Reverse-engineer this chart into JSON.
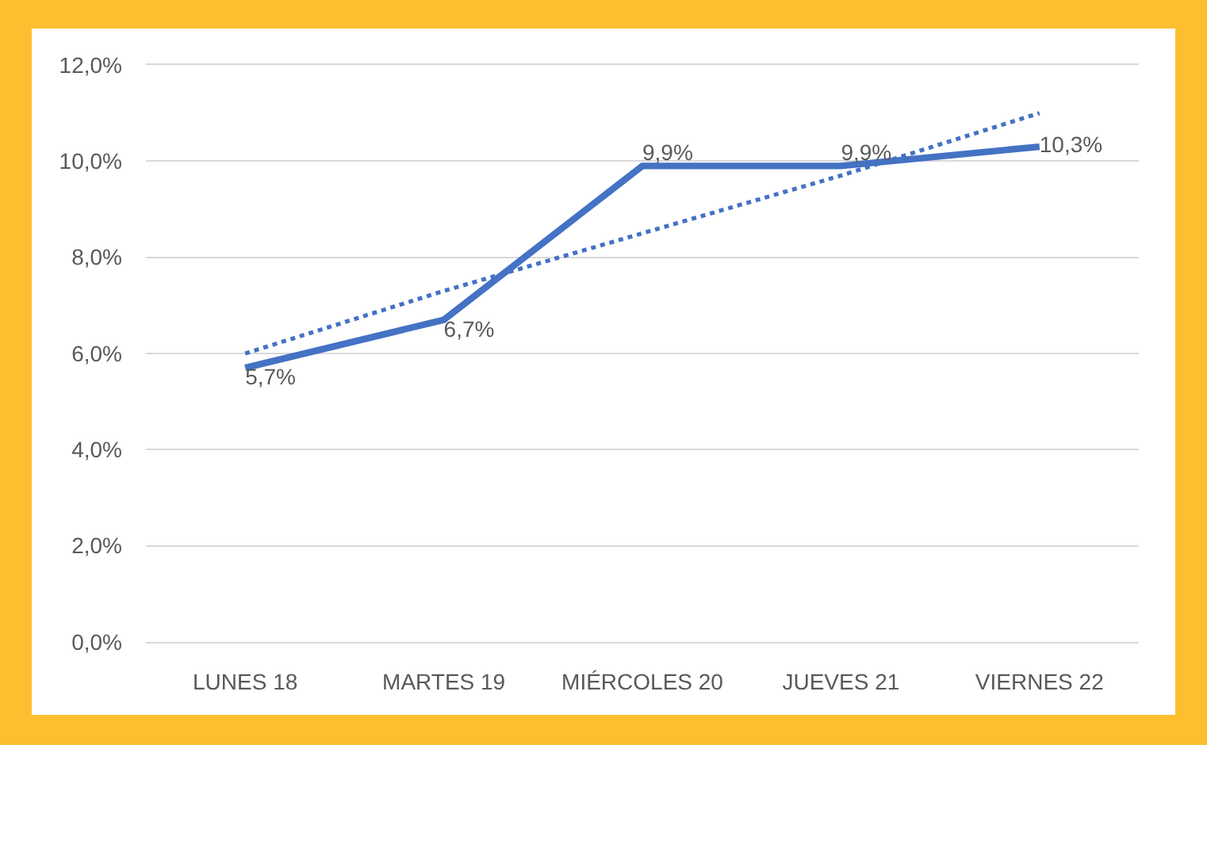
{
  "chart_data": {
    "type": "line",
    "categories": [
      "LUNES 18",
      "MARTES 19",
      "MIÉRCOLES 20",
      "JUEVES 21",
      "VIERNES 22"
    ],
    "series": [
      {
        "color": "#4472c4",
        "values": [
          5.7,
          6.7,
          9.9,
          9.9,
          10.3
        ],
        "value_labels": [
          "5,7%",
          "6,7%",
          "9,9%",
          "9,9%",
          "10,3%"
        ]
      },
      {
        "type": "line",
        "color": "#4472c4",
        "line_style": "dotted",
        "values": [
          6.0,
          7.3,
          8.5,
          9.7,
          11.0
        ]
      }
    ],
    "ylim": [
      0,
      12
    ],
    "yticks": [
      {
        "value": 0,
        "label": "0,0%"
      },
      {
        "value": 2,
        "label": "2,0%"
      },
      {
        "value": 4,
        "label": "4,0%"
      },
      {
        "value": 6,
        "label": "6,0%"
      },
      {
        "value": 8,
        "label": "8,0%"
      },
      {
        "value": 10,
        "label": "10,0%"
      },
      {
        "value": 12,
        "label": "12,0%"
      }
    ],
    "grid": "y",
    "marker": "none"
  }
}
